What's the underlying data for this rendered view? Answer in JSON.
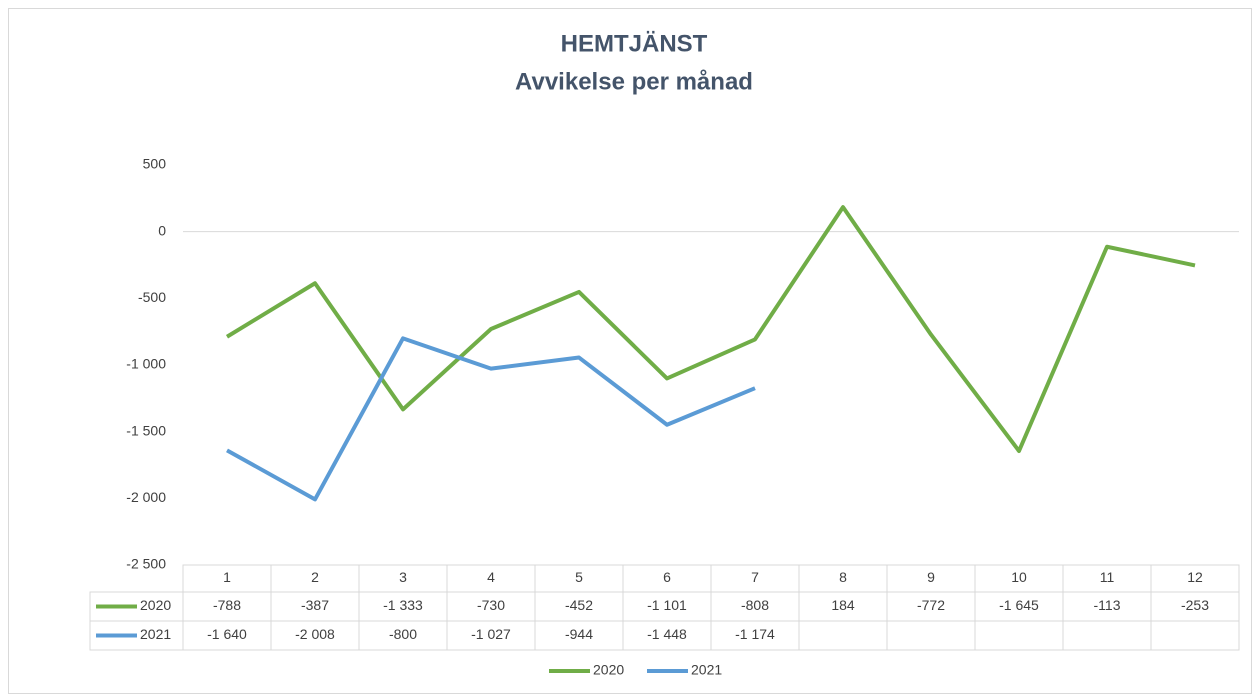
{
  "chart_data": {
    "type": "line",
    "title": "HEMTJÄNST",
    "subtitle": "Avvikelse per månad",
    "categories": [
      "1",
      "2",
      "3",
      "4",
      "5",
      "6",
      "7",
      "8",
      "9",
      "10",
      "11",
      "12"
    ],
    "series": [
      {
        "name": "2020",
        "color": "#70ad47",
        "values": [
          -788,
          -387,
          -1333,
          -730,
          -452,
          -1101,
          -808,
          184,
          -772,
          -1645,
          -113,
          -253
        ],
        "value_labels": [
          "-788",
          "-387",
          "-1 333",
          "-730",
          "-452",
          "-1 101",
          "-808",
          "184",
          "-772",
          "-1 645",
          "-113",
          "-253"
        ]
      },
      {
        "name": "2021",
        "color": "#5b9bd5",
        "values": [
          -1640,
          -2008,
          -800,
          -1027,
          -944,
          -1448,
          -1174,
          null,
          null,
          null,
          null,
          null
        ],
        "value_labels": [
          "-1 640",
          "-2 008",
          "-800",
          "-1 027",
          "-944",
          "-1 448",
          "-1 174",
          null,
          null,
          null,
          null,
          null
        ]
      }
    ],
    "ylim": [
      -2500,
      500
    ],
    "yticks": [
      500,
      0,
      -500,
      {
        "value": -1000,
        "label": "-1 000"
      },
      {
        "value": -1500,
        "label": "-1 500"
      },
      {
        "value": -2000,
        "label": "-2 000"
      },
      {
        "value": -2500,
        "label": "-2 500"
      }
    ],
    "grid": false,
    "legend": "bottom"
  }
}
